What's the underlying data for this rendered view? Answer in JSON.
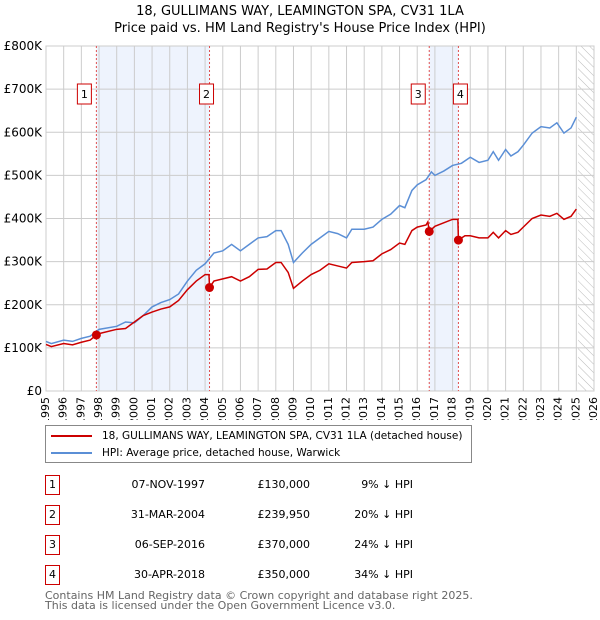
{
  "chart_data": {
    "type": "line",
    "title": "18, GULLIMANS WAY, LEAMINGTON SPA, CV31 1LA",
    "subtitle": "Price paid vs. HM Land Registry's House Price Index (HPI)",
    "xlim": [
      1995,
      2026
    ],
    "ylim": [
      0,
      800000
    ],
    "x_ticks": [
      "1995",
      "1996",
      "1997",
      "1998",
      "1999",
      "2000",
      "2001",
      "2002",
      "2003",
      "2004",
      "2005",
      "2006",
      "2007",
      "2008",
      "2009",
      "2010",
      "2011",
      "2012",
      "2013",
      "2014",
      "2015",
      "2016",
      "2017",
      "2018",
      "2019",
      "2020",
      "2021",
      "2022",
      "2023",
      "2024",
      "2025",
      "2026"
    ],
    "y_ticks": [
      {
        "v": 0,
        "label": "£0"
      },
      {
        "v": 100000,
        "label": "£100K"
      },
      {
        "v": 200000,
        "label": "£200K"
      },
      {
        "v": 300000,
        "label": "£300K"
      },
      {
        "v": 400000,
        "label": "£400K"
      },
      {
        "v": 500000,
        "label": "£500K"
      },
      {
        "v": 600000,
        "label": "£600K"
      },
      {
        "v": 700000,
        "label": "£700K"
      },
      {
        "v": 800000,
        "label": "£800K"
      }
    ],
    "grid": true,
    "shaded_periods": [
      [
        1997.85,
        2004.25
      ],
      [
        2016.68,
        2018.33
      ]
    ],
    "projection_from": 2025.1,
    "series": [
      {
        "name": "18, GULLIMANS WAY, LEAMINGTON SPA, CV31 1LA (detached house)",
        "color": "#cc0000",
        "points": [
          [
            1995,
            108
          ],
          [
            1995.3,
            103
          ],
          [
            1996,
            110
          ],
          [
            1996.5,
            107
          ],
          [
            1997,
            113
          ],
          [
            1997.5,
            118
          ],
          [
            1997.85,
            130
          ],
          [
            1998,
            133
          ],
          [
            1999,
            143
          ],
          [
            1999.5,
            145
          ],
          [
            2000,
            160
          ],
          [
            2000.5,
            175
          ],
          [
            2001,
            183
          ],
          [
            2001.5,
            190
          ],
          [
            2002,
            195
          ],
          [
            2002.5,
            210
          ],
          [
            2003,
            235
          ],
          [
            2003.5,
            255
          ],
          [
            2004,
            270
          ],
          [
            2004.22,
            270
          ],
          [
            2004.25,
            240
          ],
          [
            2004.5,
            255
          ],
          [
            2005,
            260
          ],
          [
            2005.5,
            265
          ],
          [
            2006,
            255
          ],
          [
            2006.5,
            265
          ],
          [
            2007,
            282
          ],
          [
            2007.5,
            283
          ],
          [
            2008,
            298
          ],
          [
            2008.3,
            298
          ],
          [
            2008.7,
            275
          ],
          [
            2009,
            238
          ],
          [
            2009.5,
            255
          ],
          [
            2010,
            270
          ],
          [
            2010.5,
            280
          ],
          [
            2011,
            295
          ],
          [
            2011.5,
            290
          ],
          [
            2012,
            285
          ],
          [
            2012.3,
            298
          ],
          [
            2013,
            300
          ],
          [
            2013.5,
            302
          ],
          [
            2014,
            318
          ],
          [
            2014.5,
            328
          ],
          [
            2015,
            343
          ],
          [
            2015.3,
            340
          ],
          [
            2015.7,
            372
          ],
          [
            2016,
            380
          ],
          [
            2016.5,
            385
          ],
          [
            2016.6,
            392
          ],
          [
            2016.68,
            370
          ],
          [
            2017,
            382
          ],
          [
            2017.5,
            390
          ],
          [
            2018,
            398
          ],
          [
            2018.3,
            398
          ],
          [
            2018.33,
            350
          ],
          [
            2018.7,
            360
          ],
          [
            2019,
            360
          ],
          [
            2019.5,
            355
          ],
          [
            2020,
            355
          ],
          [
            2020.3,
            368
          ],
          [
            2020.6,
            355
          ],
          [
            2021,
            372
          ],
          [
            2021.3,
            363
          ],
          [
            2021.7,
            368
          ],
          [
            2022,
            380
          ],
          [
            2022.5,
            400
          ],
          [
            2023,
            408
          ],
          [
            2023.5,
            405
          ],
          [
            2023.9,
            412
          ],
          [
            2024.3,
            398
          ],
          [
            2024.7,
            405
          ],
          [
            2025,
            422
          ]
        ]
      },
      {
        "name": "HPI: Average price, detached house, Warwick",
        "color": "#5b8fd6",
        "points": [
          [
            1995,
            115
          ],
          [
            1995.3,
            110
          ],
          [
            1996,
            118
          ],
          [
            1996.5,
            115
          ],
          [
            1997,
            122
          ],
          [
            1997.5,
            127
          ],
          [
            1998,
            143
          ],
          [
            1999,
            150
          ],
          [
            1999.5,
            160
          ],
          [
            2000,
            158
          ],
          [
            2000.5,
            175
          ],
          [
            2001,
            195
          ],
          [
            2001.5,
            205
          ],
          [
            2002,
            212
          ],
          [
            2002.5,
            225
          ],
          [
            2003,
            255
          ],
          [
            2003.5,
            280
          ],
          [
            2004,
            295
          ],
          [
            2004.5,
            320
          ],
          [
            2005,
            325
          ],
          [
            2005.5,
            340
          ],
          [
            2006,
            325
          ],
          [
            2006.5,
            340
          ],
          [
            2007,
            355
          ],
          [
            2007.5,
            358
          ],
          [
            2008,
            372
          ],
          [
            2008.3,
            372
          ],
          [
            2008.7,
            340
          ],
          [
            2009,
            298
          ],
          [
            2009.5,
            320
          ],
          [
            2010,
            340
          ],
          [
            2010.5,
            355
          ],
          [
            2011,
            370
          ],
          [
            2011.5,
            365
          ],
          [
            2012,
            355
          ],
          [
            2012.3,
            375
          ],
          [
            2013,
            375
          ],
          [
            2013.5,
            380
          ],
          [
            2014,
            398
          ],
          [
            2014.5,
            410
          ],
          [
            2015,
            430
          ],
          [
            2015.3,
            425
          ],
          [
            2015.7,
            465
          ],
          [
            2016,
            478
          ],
          [
            2016.5,
            490
          ],
          [
            2016.8,
            508
          ],
          [
            2017,
            500
          ],
          [
            2017.5,
            510
          ],
          [
            2018,
            523
          ],
          [
            2018.5,
            528
          ],
          [
            2019,
            542
          ],
          [
            2019.5,
            530
          ],
          [
            2020,
            535
          ],
          [
            2020.3,
            555
          ],
          [
            2020.6,
            535
          ],
          [
            2021,
            560
          ],
          [
            2021.3,
            545
          ],
          [
            2021.7,
            555
          ],
          [
            2022,
            570
          ],
          [
            2022.5,
            598
          ],
          [
            2023,
            613
          ],
          [
            2023.5,
            610
          ],
          [
            2023.9,
            622
          ],
          [
            2024.3,
            598
          ],
          [
            2024.7,
            610
          ],
          [
            2025,
            635
          ]
        ]
      }
    ],
    "sales": [
      {
        "id": "1",
        "x": 1997.85,
        "y": 130
      },
      {
        "id": "2",
        "x": 2004.25,
        "y": 239.95
      },
      {
        "id": "3",
        "x": 2016.68,
        "y": 370
      },
      {
        "id": "4",
        "x": 2018.33,
        "y": 350
      }
    ],
    "value_units": "£K"
  },
  "legend": {
    "red": "18, GULLIMANS WAY, LEAMINGTON SPA, CV31 1LA (detached house)",
    "blue": "HPI: Average price, detached house, Warwick"
  },
  "transactions": [
    {
      "num": "1",
      "date": "07-NOV-1997",
      "price": "£130,000",
      "pct": "9% ↓ HPI"
    },
    {
      "num": "2",
      "date": "31-MAR-2004",
      "price": "£239,950",
      "pct": "20% ↓ HPI"
    },
    {
      "num": "3",
      "date": "06-SEP-2016",
      "price": "£370,000",
      "pct": "24% ↓ HPI"
    },
    {
      "num": "4",
      "date": "30-APR-2018",
      "price": "£350,000",
      "pct": "34% ↓ HPI"
    }
  ],
  "footer": [
    "Contains HM Land Registry data © Crown copyright and database right 2025.",
    "This data is licensed under the Open Government Licence v3.0."
  ]
}
